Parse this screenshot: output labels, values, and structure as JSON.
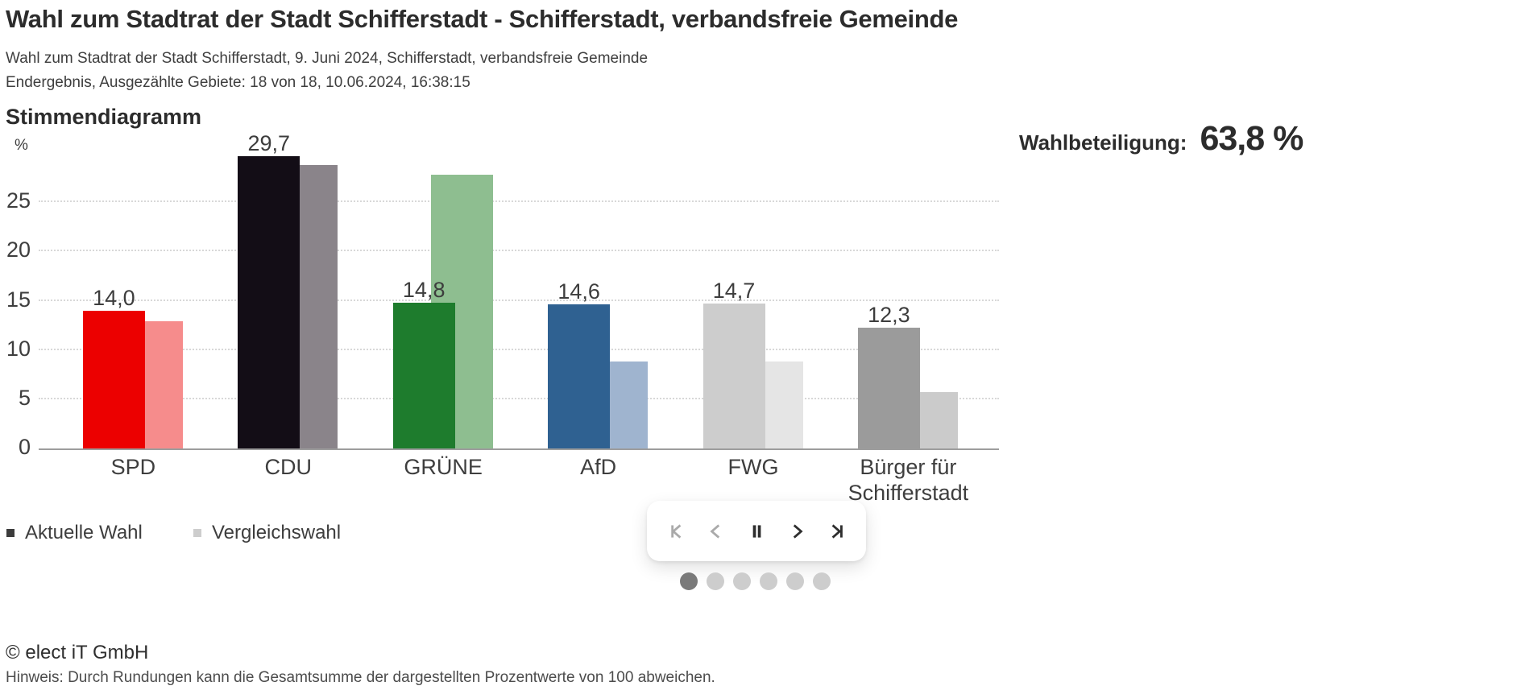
{
  "header": {
    "title": "Wahl zum Stadtrat der Stadt Schifferstadt - Schifferstadt, verbandsfreie Gemeinde",
    "subtitle": "Wahl zum Stadtrat der Stadt Schifferstadt, 9. Juni 2024, Schifferstadt, verbandsfreie Gemeinde",
    "status_line": "Endergebnis, Ausgezählte Gebiete: 18 von 18, 10.06.2024, 16:38:15"
  },
  "turnout": {
    "label": "Wahlbeteiligung:",
    "value": "63,8 %"
  },
  "chart_data": {
    "type": "bar",
    "title": "Stimmendiagramm",
    "unit": "%",
    "categories": [
      "SPD",
      "CDU",
      "GRÜNE",
      "AfD",
      "FWG",
      "Bürger für Schifferstadt"
    ],
    "series": [
      {
        "name": "Aktuelle Wahl",
        "values": [
          14.0,
          29.7,
          14.8,
          14.6,
          14.7,
          12.3
        ],
        "labels": [
          "14,0",
          "29,7",
          "14,8",
          "14,6",
          "14,7",
          "12,3"
        ],
        "colors": [
          "#ec0000",
          "#130d16",
          "#1e7c2d",
          "#2f6191",
          "#cdcdcd",
          "#9b9b9b"
        ]
      },
      {
        "name": "Vergleichswahl",
        "values": [
          12.9,
          28.8,
          27.8,
          8.8,
          8.8,
          5.7
        ],
        "labels": [],
        "colors": [
          "#f68c8c",
          "#8a848a",
          "#8ebe90",
          "#9fb4cf",
          "#e5e5e5",
          "#cbcbcb"
        ]
      }
    ],
    "ylim": [
      0,
      30
    ],
    "yticks": [
      0,
      5,
      10,
      15,
      20,
      25
    ],
    "grid": "horizontal-dotted",
    "grid_color": "#d8d8d8",
    "axis_color": "#9d9d9d",
    "legend_position": "bottom-left"
  },
  "legend": {
    "items": [
      {
        "label": "Aktuelle Wahl",
        "color": "#3c3c3c"
      },
      {
        "label": "Vergleichswahl",
        "color": "#cdcdcd"
      }
    ]
  },
  "carousel": {
    "active_color": "#2e2e2e",
    "disabled_color": "#aaaaaa",
    "buttons": [
      {
        "name": "first",
        "disabled": true
      },
      {
        "name": "previous",
        "disabled": true
      },
      {
        "name": "pause",
        "disabled": false
      },
      {
        "name": "next",
        "disabled": false
      },
      {
        "name": "last",
        "disabled": false
      }
    ],
    "dots": {
      "count": 6,
      "active_index": 0,
      "active_color": "#7a7a7a",
      "inactive_color": "#cdcdcd"
    }
  },
  "footer": {
    "copyright": "© elect iT GmbH",
    "note": "Hinweis: Durch Rundungen kann die Gesamtsumme der dargestellten Prozentwerte von 100 abweichen."
  }
}
